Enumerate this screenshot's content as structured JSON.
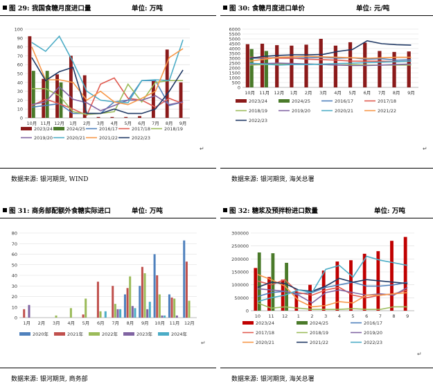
{
  "panels": [
    {
      "title": "图 29: 我国食糖月度进口量",
      "unit": "单位: 万吨",
      "source": "数据来源: 银河期货, WIND"
    },
    {
      "title": "图 30: 食糖月度进口单价",
      "unit": "单位: 元/吨",
      "source": "数据来源: 银河期货, 海关总署"
    },
    {
      "title": "图 31: 商务部配额外食糖实际进口",
      "unit": "单位: 万吨",
      "source": "数据来源: 银河期货, 商务部"
    },
    {
      "title": "图 32: 糖浆及预拌粉进口数量",
      "unit": "单位: 万吨",
      "source": "数据来源: 银河期货, 海关总署"
    }
  ],
  "chart_data": [
    {
      "type": "bar+line",
      "categories": [
        "10月",
        "11月",
        "12月",
        "1月",
        "2月",
        "3月",
        "4月",
        "5月",
        "6月",
        "7月",
        "8月",
        "9月"
      ],
      "ylim": [
        0,
        100
      ],
      "yticks": [
        0,
        10,
        20,
        30,
        40,
        50,
        60,
        70,
        80,
        90,
        100
      ],
      "legend_position": "bottom",
      "bars": [
        {
          "name": "2023/24",
          "color": "#8b1a1a",
          "values": [
            92,
            44,
            49,
            70,
            48,
            1,
            1,
            1,
            2,
            42,
            77,
            40
          ]
        },
        {
          "name": "2024/25",
          "color": "#4a7a2a",
          "values": [
            53,
            53,
            40,
            null,
            null,
            null,
            null,
            null,
            null,
            null,
            null,
            null
          ]
        }
      ],
      "lines": [
        {
          "name": "2016/17",
          "color": "#4f81bd",
          "values": [
            12,
            14,
            16,
            5,
            5,
            5,
            18,
            20,
            42,
            42,
            14,
            18
          ]
        },
        {
          "name": "2017/18",
          "color": "#e05a50",
          "values": [
            14,
            21,
            16,
            10,
            3,
            38,
            45,
            22,
            20,
            12,
            22,
            16
          ]
        },
        {
          "name": "2018/19",
          "color": "#9bbb59",
          "values": [
            33,
            33,
            25,
            7,
            4,
            5,
            7,
            38,
            18,
            40,
            42,
            42
          ]
        },
        {
          "name": "2019/20",
          "color": "#8064a2",
          "values": [
            15,
            18,
            35,
            21,
            17,
            8,
            14,
            20,
            20,
            25,
            15,
            18
          ]
        },
        {
          "name": "2020/21",
          "color": "#4bacc6",
          "values": [
            85,
            75,
            92,
            63,
            30,
            20,
            18,
            17,
            42,
            43,
            42,
            88
          ]
        },
        {
          "name": "2021/22",
          "color": "#f79646",
          "values": [
            80,
            43,
            43,
            40,
            20,
            30,
            18,
            15,
            22,
            30,
            68,
            78
          ]
        },
        {
          "name": "2022/23",
          "color": "#1f3864",
          "values": [
            68,
            42,
            52,
            57,
            5,
            5,
            10,
            5,
            5,
            10,
            30,
            54
          ]
        }
      ]
    },
    {
      "type": "bar+line",
      "categories": [
        "10月",
        "11月",
        "12月",
        "1月",
        "2月",
        "3月",
        "4月",
        "5月",
        "6月",
        "7月",
        "8月",
        "9月"
      ],
      "ylim": [
        0,
        6000
      ],
      "yticks": [
        0,
        500,
        1000,
        1500,
        2000,
        2500,
        3000,
        3500,
        4000,
        4500,
        5000,
        5500,
        6000
      ],
      "legend_position": "bottom",
      "bars": [
        {
          "name": "2023/24",
          "color": "#8b1a1a",
          "values": [
            4450,
            4500,
            4350,
            4300,
            4400,
            5000,
            4300,
            4650,
            4600,
            3750,
            3650,
            3700
          ]
        },
        {
          "name": "2024/25",
          "color": "#4a7a2a",
          "values": [
            3950,
            3750,
            null,
            null,
            null,
            null,
            null,
            null,
            null,
            null,
            null,
            null
          ]
        }
      ],
      "lines": [
        {
          "name": "2016/17",
          "color": "#4f81bd",
          "values": [
            3000,
            3000,
            3100,
            3000,
            3050,
            3100,
            3000,
            3050,
            2900,
            2950,
            2800,
            2850
          ]
        },
        {
          "name": "2017/18",
          "color": "#e05a50",
          "values": [
            3100,
            3050,
            3000,
            3000,
            2900,
            2850,
            2800,
            2700,
            2700,
            2700,
            2650,
            2700
          ]
        },
        {
          "name": "2018/19",
          "color": "#9bbb59",
          "values": [
            2300,
            2350,
            2400,
            2450,
            2400,
            2350,
            2300,
            2350,
            2300,
            2300,
            2300,
            2300
          ]
        },
        {
          "name": "2019/20",
          "color": "#8064a2",
          "values": [
            2400,
            2450,
            2500,
            2450,
            2400,
            2350,
            2300,
            2250,
            2250,
            2300,
            2350,
            2400
          ]
        },
        {
          "name": "2020/21",
          "color": "#4bacc6",
          "values": [
            2500,
            2400,
            2300,
            2350,
            2350,
            2400,
            2450,
            2500,
            2550,
            2600,
            2650,
            2700
          ]
        },
        {
          "name": "2021/22",
          "color": "#f79646",
          "values": [
            2700,
            2900,
            3100,
            3150,
            3200,
            3150,
            3100,
            3050,
            3000,
            3050,
            3100,
            3100
          ]
        },
        {
          "name": "2022/23",
          "color": "#1f3864",
          "values": [
            3000,
            3200,
            3300,
            3350,
            3350,
            3400,
            3700,
            3900,
            4800,
            4500,
            4400,
            4350
          ]
        }
      ]
    },
    {
      "type": "bar",
      "categories": [
        "1月",
        "2月",
        "3月",
        "4月",
        "5月",
        "6月",
        "7月",
        "8月",
        "9月",
        "10月",
        "11月",
        "12月"
      ],
      "ylim": [
        0,
        80
      ],
      "yticks": [
        0,
        10,
        20,
        30,
        40,
        50,
        60,
        70,
        80
      ],
      "legend_position": "bottom",
      "series": [
        {
          "name": "2020年",
          "color": "#4f81bd",
          "values": [
            0,
            0,
            0,
            0,
            0,
            0,
            0,
            22,
            30,
            60,
            22,
            73
          ]
        },
        {
          "name": "2021年",
          "color": "#c0504d",
          "values": [
            8,
            0,
            0,
            0,
            3,
            34,
            30,
            28,
            48,
            40,
            19,
            53
          ]
        },
        {
          "name": "2022年",
          "color": "#9bbb59",
          "values": [
            0,
            0,
            2,
            9,
            18,
            6,
            13,
            39,
            42,
            22,
            18,
            16
          ]
        },
        {
          "name": "2023年",
          "color": "#8064a2",
          "values": [
            12,
            0,
            0,
            0,
            0,
            0,
            8,
            11,
            8,
            2,
            2,
            0
          ]
        },
        {
          "name": "2024年",
          "color": "#4bacc6",
          "values": [
            0,
            0,
            0,
            0,
            0,
            6,
            8,
            9,
            15,
            2,
            0,
            0
          ]
        }
      ]
    },
    {
      "type": "bar+line",
      "categories": [
        "10",
        "11",
        "12",
        "1",
        "2",
        "3",
        "4",
        "5",
        "6",
        "7",
        "8",
        "9"
      ],
      "ylim": [
        0,
        300000
      ],
      "yticks": [
        0,
        50000,
        100000,
        150000,
        200000,
        250000,
        300000
      ],
      "legend_position": "bottom",
      "bars": [
        {
          "name": "2023/24",
          "color": "#c00000",
          "values": [
            165000,
            130000,
            120000,
            75000,
            100000,
            155000,
            190000,
            195000,
            220000,
            230000,
            270000,
            285000
          ]
        },
        {
          "name": "2024/25",
          "color": "#4a7a2a",
          "values": [
            225000,
            222000,
            185000,
            null,
            null,
            null,
            null,
            null,
            null,
            null,
            null,
            null
          ]
        }
      ],
      "lines": [
        {
          "name": "2016/17",
          "color": "#4f81bd",
          "values": [
            55000,
            70000,
            75000,
            65000,
            70000,
            90000,
            100000,
            110000,
            95000,
            95000,
            100000,
            110000
          ]
        },
        {
          "name": "2017/18",
          "color": "#e05a50",
          "values": [
            115000,
            100000,
            120000,
            70000,
            60000,
            80000,
            90000,
            60000,
            50000,
            60000,
            65000,
            80000
          ]
        },
        {
          "name": "2018/19",
          "color": "#9bbb59",
          "values": [
            30000,
            10000,
            15000,
            10000,
            5000,
            5000,
            5000,
            8000,
            5000,
            5000,
            15000,
            15000
          ]
        },
        {
          "name": "2019/20",
          "color": "#8064a2",
          "values": [
            85000,
            80000,
            75000,
            60000,
            30000,
            70000,
            80000,
            70000,
            60000,
            65000,
            60000,
            90000
          ]
        },
        {
          "name": "2020/21",
          "color": "#f79646",
          "values": [
            140000,
            120000,
            95000,
            40000,
            15000,
            20000,
            35000,
            30000,
            60000,
            60000,
            65000,
            70000
          ]
        },
        {
          "name": "2021/22",
          "color": "#1f3864",
          "values": [
            90000,
            110000,
            105000,
            80000,
            75000,
            95000,
            125000,
            110000,
            120000,
            115000,
            110000,
            105000
          ]
        },
        {
          "name": "2022/23",
          "color": "#4bacc6",
          "values": [
            35000,
            50000,
            60000,
            80000,
            70000,
            160000,
            175000,
            130000,
            210000,
            195000,
            185000,
            175000
          ]
        }
      ]
    }
  ]
}
